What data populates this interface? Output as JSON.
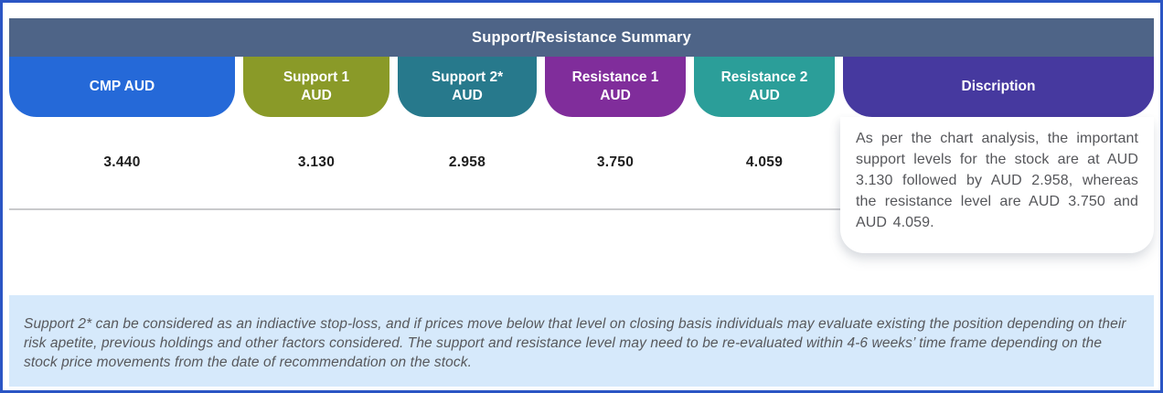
{
  "window": {
    "border_color": "#2b55c4"
  },
  "header": {
    "title": "Support/Resistance Summary",
    "bg_color": "#4e6487",
    "text_color": "#ffffff"
  },
  "columns": [
    {
      "label": "CMP AUD",
      "value": "3.440",
      "color": "#2569d8"
    },
    {
      "label": "Support 1",
      "label2": "AUD",
      "value": "3.130",
      "color": "#8a9a28"
    },
    {
      "label": "Support 2*",
      "label2": "AUD",
      "value": "2.958",
      "color": "#27798c"
    },
    {
      "label": "Resistance 1",
      "label2": "AUD",
      "value": "3.750",
      "color": "#802d9b"
    },
    {
      "label": "Resistance 2",
      "label2": "AUD",
      "value": "4.059",
      "color": "#2b9e99"
    }
  ],
  "description": {
    "header": "Discription",
    "header_color": "#46399f",
    "body": "As per the chart analysis, the important support levels for the stock are at AUD 3.130 followed by AUD 2.958, whereas the resistance level are AUD 3.750 and AUD 4.059."
  },
  "footnote": {
    "bg_color": "#d6e9fb",
    "text": "Support 2* can be considered as an indiactive stop-loss, and if prices move below that level on closing basis individuals may evaluate existing the position depending on their risk apetite, previous holdings and other factors considered. The support and resistance level may need to be re-evaluated within 4-6 weeks’ time frame depending on the stock price movements from  the date of recommendation on the stock."
  }
}
